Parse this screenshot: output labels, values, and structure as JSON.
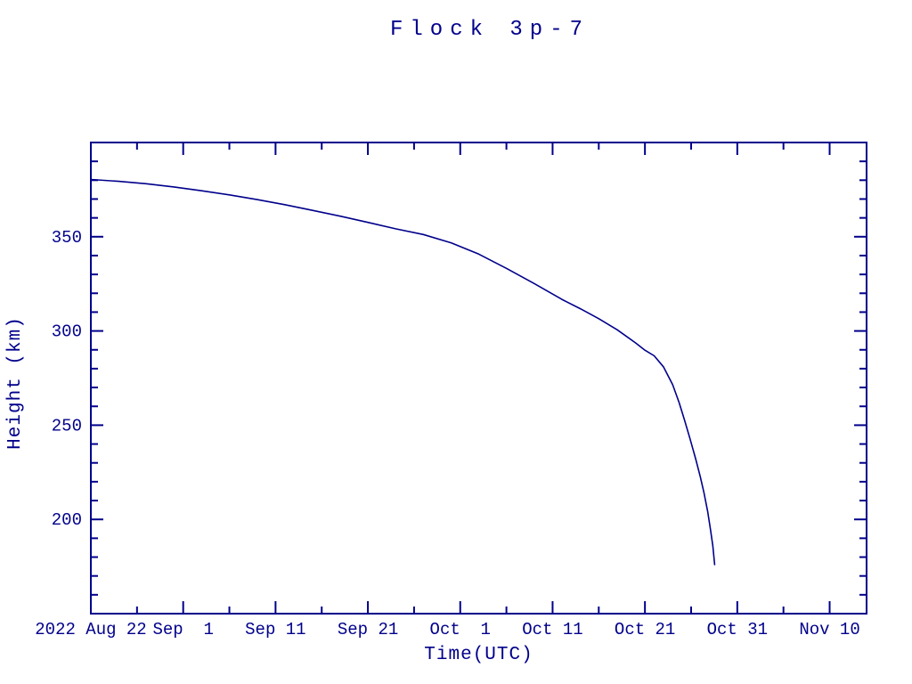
{
  "window": {
    "background": "#ffffff"
  },
  "colors": {
    "accent": "#00008B",
    "background": "#ffffff"
  },
  "chart_data": {
    "type": "line",
    "title": "Flock 3p-7",
    "xlabel": "Time(UTC)",
    "ylabel": "Height (km)",
    "x_unit": "days since 2022 Aug 22",
    "xlim_days": [
      0,
      84
    ],
    "ylim": [
      150,
      400
    ],
    "y_major_step": 50,
    "y_minor_step": 10,
    "x_major_step_days": 10,
    "x_minor_step_days": 5,
    "grid": "off",
    "legend": "none",
    "line_color": "#00008B",
    "x_ticks": [
      {
        "day": 0,
        "label": "2022 Aug 22"
      },
      {
        "day": 10,
        "label": "Sep  1"
      },
      {
        "day": 20,
        "label": "Sep 11"
      },
      {
        "day": 30,
        "label": "Sep 21"
      },
      {
        "day": 40,
        "label": "Oct  1"
      },
      {
        "day": 50,
        "label": "Oct 11"
      },
      {
        "day": 60,
        "label": "Oct 21"
      },
      {
        "day": 70,
        "label": "Oct 31"
      },
      {
        "day": 80,
        "label": "Nov 10"
      }
    ],
    "y_ticks": [
      {
        "km": 350,
        "label": "350"
      },
      {
        "km": 300,
        "label": "300"
      },
      {
        "km": 250,
        "label": "250"
      },
      {
        "km": 200,
        "label": "200"
      }
    ],
    "series": [
      {
        "name": "Flock 3p-7 height",
        "points": [
          [
            0,
            380.4
          ],
          [
            3,
            379.4
          ],
          [
            6,
            378.1
          ],
          [
            9,
            376.4
          ],
          [
            12,
            374.4
          ],
          [
            15,
            372.2
          ],
          [
            18,
            369.7
          ],
          [
            21,
            367.0
          ],
          [
            24,
            364.0
          ],
          [
            27,
            360.9
          ],
          [
            30,
            357.6
          ],
          [
            33,
            354.2
          ],
          [
            36,
            351.2
          ],
          [
            39,
            346.8
          ],
          [
            42,
            340.8
          ],
          [
            45,
            333.2
          ],
          [
            48,
            325.2
          ],
          [
            51,
            316.8
          ],
          [
            53,
            311.8
          ],
          [
            55,
            306.5
          ],
          [
            57,
            300.6
          ],
          [
            59,
            293.6
          ],
          [
            60,
            289.8
          ],
          [
            61,
            286.8
          ],
          [
            62,
            281.0
          ],
          [
            63,
            271.5
          ],
          [
            63.7,
            262.0
          ],
          [
            64.3,
            252.5
          ],
          [
            64.9,
            242.5
          ],
          [
            65.5,
            232.0
          ],
          [
            66,
            222.5
          ],
          [
            66.4,
            214.0
          ],
          [
            66.8,
            204.0
          ],
          [
            67.1,
            194.5
          ],
          [
            67.35,
            186.0
          ],
          [
            67.55,
            176.0
          ]
        ]
      }
    ]
  }
}
